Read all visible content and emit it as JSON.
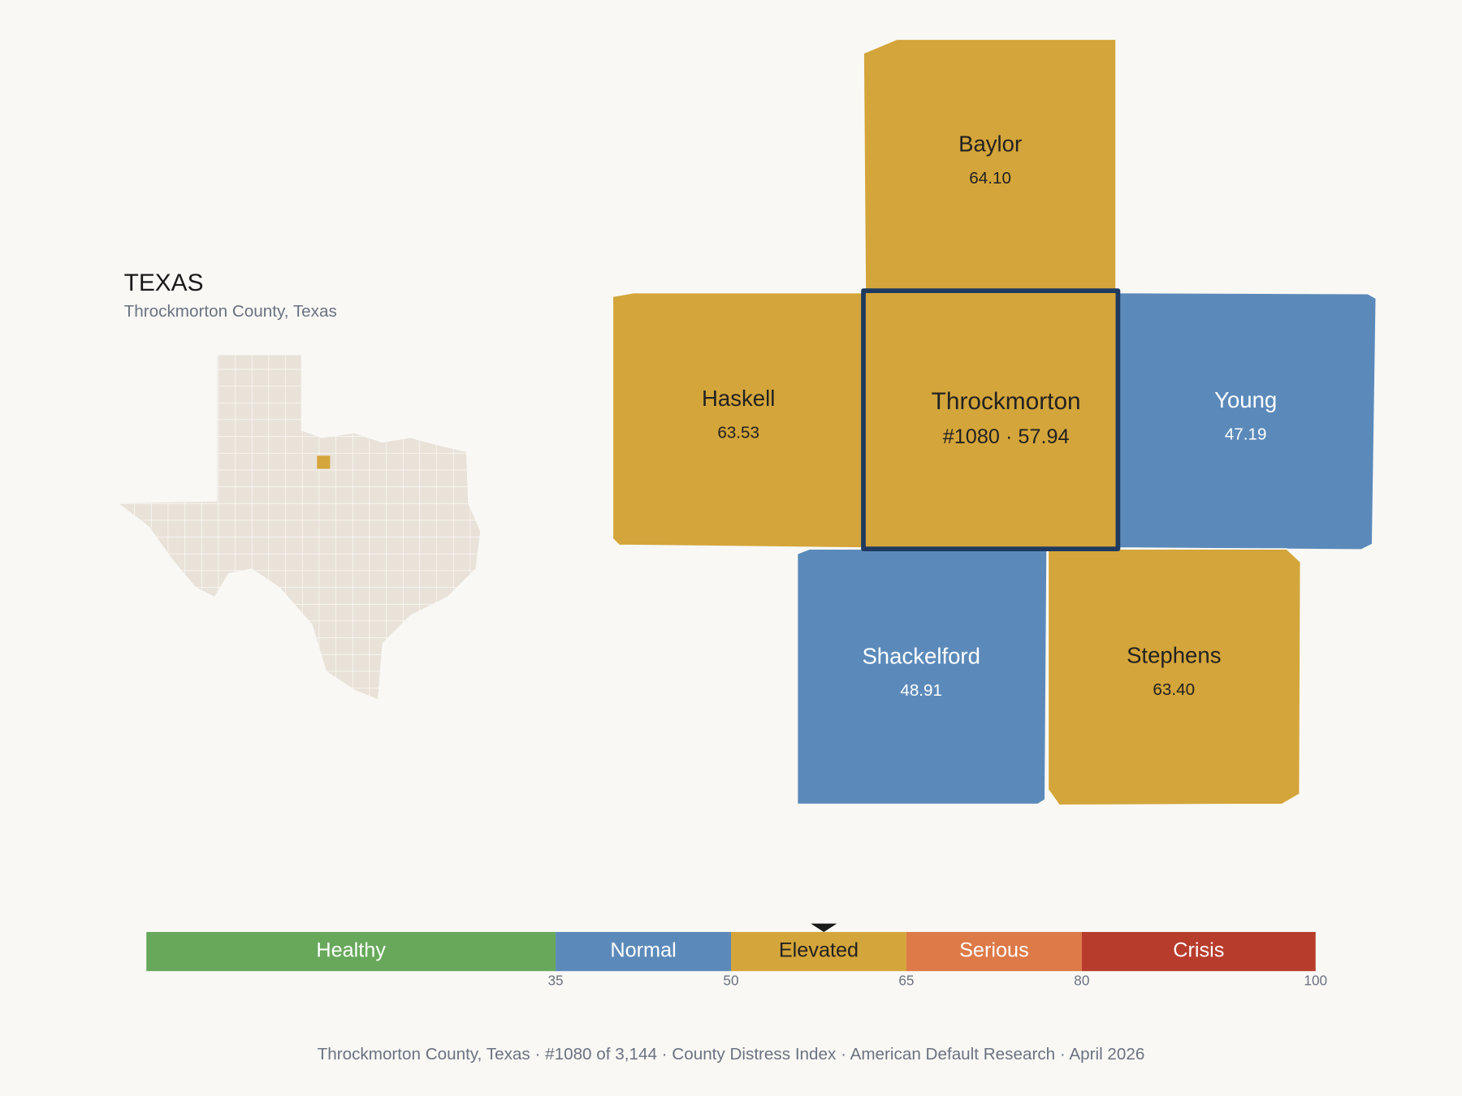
{
  "header": {
    "title": "TEXAS",
    "subtitle": "Throckmorton County, Texas"
  },
  "counties": [
    {
      "name": "Baylor",
      "score": "64.10",
      "color": "#d4a53a",
      "text_color": "#222222"
    },
    {
      "name": "Haskell",
      "score": "63.53",
      "color": "#d4a53a",
      "text_color": "#222222"
    },
    {
      "name": "Throckmorton",
      "score": "#1080 · 57.94",
      "color": "#d4a53a",
      "text_color": "#222222"
    },
    {
      "name": "Young",
      "score": "47.19",
      "color": "#5b8aba",
      "text_color": "#ffffff"
    },
    {
      "name": "Shackelford",
      "score": "48.91",
      "color": "#5b8aba",
      "text_color": "#ffffff"
    },
    {
      "name": "Stephens",
      "score": "63.40",
      "color": "#d4a53a",
      "text_color": "#222222"
    }
  ],
  "scale": {
    "lim": [
      0,
      100
    ],
    "ticks": [
      35,
      50,
      65,
      80,
      100
    ],
    "marker": 57.94,
    "bands": [
      {
        "name": "Healthy",
        "color": "#67a85a",
        "text_color": "#ffffff"
      },
      {
        "name": "Normal",
        "color": "#5b8aba",
        "text_color": "#ffffff"
      },
      {
        "name": "Elevated",
        "color": "#d4a53a",
        "text_color": "#222222"
      },
      {
        "name": "Serious",
        "color": "#dd7a48",
        "text_color": "#ffffff"
      },
      {
        "name": "Crisis",
        "color": "#b83c2c",
        "text_color": "#ffffff"
      }
    ]
  },
  "footer": "Throckmorton County, Texas  ·  #1080 of 3,144  ·  County Distress Index  ·  American Default Research  ·  April 2026"
}
